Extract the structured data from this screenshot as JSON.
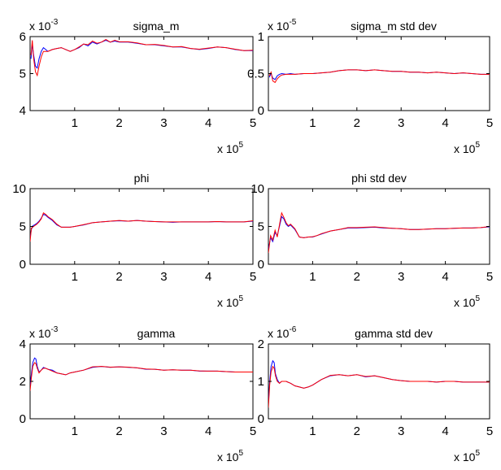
{
  "chart_data": [
    {
      "type": "line",
      "title": "sigma_m",
      "y_exponent": "-3",
      "x_exponent": "5",
      "xlim": [
        0,
        5
      ],
      "ylim": [
        4,
        6
      ],
      "x_ticks": [
        "1",
        "2",
        "3",
        "4",
        "5"
      ],
      "y_ticks": [
        "4",
        "5",
        "6"
      ],
      "grid": false,
      "series": [
        {
          "color": "#0000ff",
          "x": [
            0.02,
            0.05,
            0.08,
            0.12,
            0.16,
            0.2,
            0.25,
            0.3,
            0.35,
            0.4,
            0.5,
            0.6,
            0.7,
            0.8,
            0.9,
            1.0,
            1.1,
            1.2,
            1.3,
            1.4,
            1.5,
            1.6,
            1.7,
            1.8,
            1.9,
            2.0,
            2.2,
            2.4,
            2.6,
            2.8,
            3.0,
            3.2,
            3.4,
            3.6,
            3.8,
            4.0,
            4.2,
            4.4,
            4.6,
            4.8,
            5.0
          ],
          "y": [
            5.4,
            5.8,
            5.5,
            5.2,
            5.15,
            5.4,
            5.6,
            5.7,
            5.65,
            5.6,
            5.65,
            5.68,
            5.7,
            5.65,
            5.6,
            5.65,
            5.7,
            5.8,
            5.75,
            5.85,
            5.8,
            5.85,
            5.9,
            5.85,
            5.88,
            5.85,
            5.85,
            5.82,
            5.78,
            5.78,
            5.75,
            5.72,
            5.72,
            5.68,
            5.65,
            5.68,
            5.72,
            5.7,
            5.65,
            5.62,
            5.62
          ]
        },
        {
          "color": "#ff0000",
          "x": [
            0.02,
            0.05,
            0.08,
            0.12,
            0.16,
            0.2,
            0.25,
            0.3,
            0.35,
            0.4,
            0.5,
            0.6,
            0.7,
            0.8,
            0.9,
            1.0,
            1.1,
            1.2,
            1.3,
            1.4,
            1.5,
            1.6,
            1.7,
            1.8,
            1.9,
            2.0,
            2.2,
            2.4,
            2.6,
            2.8,
            3.0,
            3.2,
            3.4,
            3.6,
            3.8,
            4.0,
            4.2,
            4.4,
            4.6,
            4.8,
            5.0
          ],
          "y": [
            5.5,
            5.9,
            5.4,
            5.05,
            4.95,
            5.2,
            5.45,
            5.6,
            5.6,
            5.6,
            5.65,
            5.68,
            5.7,
            5.65,
            5.6,
            5.65,
            5.72,
            5.8,
            5.78,
            5.88,
            5.82,
            5.85,
            5.92,
            5.85,
            5.9,
            5.86,
            5.86,
            5.83,
            5.78,
            5.79,
            5.76,
            5.72,
            5.73,
            5.68,
            5.66,
            5.69,
            5.72,
            5.7,
            5.66,
            5.62,
            5.63
          ]
        }
      ]
    },
    {
      "type": "line",
      "title": "sigma_m std dev",
      "y_exponent": "-5",
      "x_exponent": "5",
      "xlim": [
        0,
        5
      ],
      "ylim": [
        0,
        1
      ],
      "x_ticks": [
        "1",
        "2",
        "3",
        "4",
        "5"
      ],
      "y_ticks": [
        "0",
        "0.5",
        "1"
      ],
      "grid": false,
      "series": [
        {
          "color": "#0000ff",
          "x": [
            0.02,
            0.06,
            0.1,
            0.15,
            0.2,
            0.25,
            0.3,
            0.4,
            0.5,
            0.6,
            0.8,
            1.0,
            1.2,
            1.4,
            1.6,
            1.8,
            2.0,
            2.2,
            2.4,
            2.6,
            2.8,
            3.0,
            3.2,
            3.4,
            3.6,
            3.8,
            4.0,
            4.2,
            4.4,
            4.6,
            4.8,
            5.0
          ],
          "y": [
            0.45,
            0.5,
            0.44,
            0.42,
            0.47,
            0.49,
            0.5,
            0.49,
            0.5,
            0.49,
            0.5,
            0.5,
            0.51,
            0.52,
            0.54,
            0.55,
            0.55,
            0.54,
            0.55,
            0.54,
            0.53,
            0.53,
            0.52,
            0.52,
            0.51,
            0.52,
            0.51,
            0.5,
            0.51,
            0.5,
            0.49,
            0.49
          ]
        },
        {
          "color": "#ff0000",
          "x": [
            0.02,
            0.06,
            0.1,
            0.15,
            0.2,
            0.25,
            0.3,
            0.4,
            0.5,
            0.6,
            0.8,
            1.0,
            1.2,
            1.4,
            1.6,
            1.8,
            2.0,
            2.2,
            2.4,
            2.6,
            2.8,
            3.0,
            3.2,
            3.4,
            3.6,
            3.8,
            4.0,
            4.2,
            4.4,
            4.6,
            4.8,
            5.0
          ],
          "y": [
            0.47,
            0.52,
            0.4,
            0.38,
            0.43,
            0.46,
            0.48,
            0.49,
            0.49,
            0.49,
            0.5,
            0.5,
            0.51,
            0.52,
            0.54,
            0.55,
            0.55,
            0.54,
            0.55,
            0.54,
            0.53,
            0.53,
            0.52,
            0.52,
            0.51,
            0.52,
            0.51,
            0.5,
            0.51,
            0.5,
            0.49,
            0.49
          ]
        }
      ]
    },
    {
      "type": "line",
      "title": "phi",
      "y_exponent": "",
      "x_exponent": "5",
      "xlim": [
        0,
        5
      ],
      "ylim": [
        0,
        10
      ],
      "x_ticks": [
        "1",
        "2",
        "3",
        "4",
        "5"
      ],
      "y_ticks": [
        "0",
        "5",
        "10"
      ],
      "grid": false,
      "series": [
        {
          "color": "#0000ff",
          "x": [
            0.0,
            0.03,
            0.06,
            0.1,
            0.15,
            0.2,
            0.25,
            0.3,
            0.35,
            0.4,
            0.5,
            0.6,
            0.7,
            0.8,
            0.9,
            1.0,
            1.2,
            1.4,
            1.6,
            1.8,
            2.0,
            2.2,
            2.4,
            2.6,
            2.8,
            3.0,
            3.2,
            3.4,
            3.6,
            3.8,
            4.0,
            4.2,
            4.4,
            4.6,
            4.8,
            5.0
          ],
          "y": [
            3.5,
            4.6,
            5.1,
            5.2,
            5.4,
            5.7,
            6.1,
            6.6,
            6.5,
            6.2,
            5.8,
            5.2,
            4.9,
            4.9,
            4.9,
            5.0,
            5.2,
            5.5,
            5.6,
            5.7,
            5.75,
            5.7,
            5.8,
            5.7,
            5.65,
            5.6,
            5.55,
            5.6,
            5.6,
            5.6,
            5.6,
            5.65,
            5.6,
            5.6,
            5.6,
            5.7
          ]
        },
        {
          "color": "#ff0000",
          "x": [
            0.0,
            0.03,
            0.06,
            0.1,
            0.15,
            0.2,
            0.25,
            0.3,
            0.35,
            0.4,
            0.5,
            0.6,
            0.7,
            0.8,
            0.9,
            1.0,
            1.2,
            1.4,
            1.6,
            1.8,
            2.0,
            2.2,
            2.4,
            2.6,
            2.8,
            3.0,
            3.2,
            3.4,
            3.6,
            3.8,
            4.0,
            4.2,
            4.4,
            4.6,
            4.8,
            5.0
          ],
          "y": [
            3.0,
            4.8,
            4.9,
            5.1,
            5.3,
            5.6,
            6.0,
            6.8,
            6.6,
            6.3,
            5.9,
            5.3,
            4.9,
            4.9,
            4.9,
            5.0,
            5.25,
            5.5,
            5.6,
            5.7,
            5.8,
            5.7,
            5.8,
            5.7,
            5.65,
            5.6,
            5.6,
            5.6,
            5.6,
            5.6,
            5.6,
            5.65,
            5.6,
            5.6,
            5.6,
            5.75
          ]
        }
      ]
    },
    {
      "type": "line",
      "title": "phi std dev",
      "y_exponent": "",
      "x_exponent": "5",
      "xlim": [
        0,
        5
      ],
      "ylim": [
        0,
        10
      ],
      "x_ticks": [
        "1",
        "2",
        "3",
        "4",
        "5"
      ],
      "y_ticks": [
        "0",
        "5",
        "10"
      ],
      "grid": false,
      "series": [
        {
          "color": "#0000ff",
          "x": [
            0.0,
            0.05,
            0.1,
            0.15,
            0.2,
            0.25,
            0.3,
            0.35,
            0.4,
            0.45,
            0.5,
            0.6,
            0.7,
            0.8,
            0.9,
            1.0,
            1.1,
            1.2,
            1.4,
            1.6,
            1.8,
            2.0,
            2.2,
            2.4,
            2.6,
            2.8,
            3.0,
            3.2,
            3.4,
            3.6,
            3.8,
            4.0,
            4.2,
            4.4,
            4.6,
            4.8,
            5.0
          ],
          "y": [
            2.0,
            3.5,
            3.0,
            4.2,
            3.8,
            5.0,
            6.3,
            6.0,
            5.3,
            5.0,
            5.2,
            4.6,
            3.6,
            3.5,
            3.6,
            3.6,
            3.8,
            4.0,
            4.4,
            4.6,
            4.8,
            4.8,
            4.85,
            4.9,
            4.8,
            4.75,
            4.7,
            4.6,
            4.6,
            4.65,
            4.7,
            4.7,
            4.75,
            4.8,
            4.8,
            4.85,
            4.95
          ]
        },
        {
          "color": "#ff0000",
          "x": [
            0.0,
            0.05,
            0.1,
            0.15,
            0.2,
            0.25,
            0.3,
            0.35,
            0.4,
            0.45,
            0.5,
            0.6,
            0.7,
            0.8,
            0.9,
            1.0,
            1.1,
            1.2,
            1.4,
            1.6,
            1.8,
            2.0,
            2.2,
            2.4,
            2.6,
            2.8,
            3.0,
            3.2,
            3.4,
            3.6,
            3.8,
            4.0,
            4.2,
            4.4,
            4.6,
            4.8,
            5.0
          ],
          "y": [
            1.5,
            3.8,
            3.2,
            4.5,
            3.6,
            5.2,
            6.8,
            6.2,
            5.5,
            5.1,
            5.3,
            4.7,
            3.6,
            3.5,
            3.6,
            3.65,
            3.8,
            4.05,
            4.4,
            4.6,
            4.85,
            4.85,
            4.9,
            4.95,
            4.85,
            4.75,
            4.7,
            4.6,
            4.6,
            4.65,
            4.7,
            4.7,
            4.75,
            4.8,
            4.8,
            4.85,
            5.0
          ]
        }
      ]
    },
    {
      "type": "line",
      "title": "gamma",
      "y_exponent": "-3",
      "x_exponent": "5",
      "xlim": [
        0,
        5
      ],
      "ylim": [
        0,
        4
      ],
      "x_ticks": [
        "1",
        "2",
        "3",
        "4",
        "5"
      ],
      "y_ticks": [
        "0",
        "2",
        "4"
      ],
      "grid": false,
      "series": [
        {
          "color": "#0000ff",
          "x": [
            0.0,
            0.03,
            0.06,
            0.1,
            0.13,
            0.16,
            0.2,
            0.25,
            0.3,
            0.35,
            0.4,
            0.5,
            0.6,
            0.7,
            0.8,
            0.9,
            1.0,
            1.2,
            1.4,
            1.6,
            1.8,
            2.0,
            2.2,
            2.4,
            2.6,
            2.8,
            3.0,
            3.2,
            3.4,
            3.6,
            3.8,
            4.0,
            4.2,
            4.4,
            4.6,
            4.8,
            5.0
          ],
          "y": [
            1.8,
            2.4,
            3.0,
            3.25,
            3.2,
            2.8,
            2.5,
            2.6,
            2.75,
            2.7,
            2.65,
            2.6,
            2.45,
            2.4,
            2.35,
            2.45,
            2.5,
            2.6,
            2.75,
            2.8,
            2.75,
            2.78,
            2.75,
            2.72,
            2.65,
            2.65,
            2.6,
            2.62,
            2.6,
            2.6,
            2.55,
            2.55,
            2.55,
            2.52,
            2.5,
            2.5,
            2.5
          ]
        },
        {
          "color": "#ff0000",
          "x": [
            0.0,
            0.03,
            0.06,
            0.1,
            0.13,
            0.16,
            0.2,
            0.25,
            0.3,
            0.35,
            0.4,
            0.5,
            0.6,
            0.7,
            0.8,
            0.9,
            1.0,
            1.2,
            1.4,
            1.6,
            1.8,
            2.0,
            2.2,
            2.4,
            2.6,
            2.8,
            3.0,
            3.2,
            3.4,
            3.6,
            3.8,
            4.0,
            4.2,
            4.4,
            4.6,
            4.8,
            5.0
          ],
          "y": [
            1.5,
            2.2,
            2.8,
            3.0,
            2.95,
            2.7,
            2.45,
            2.6,
            2.7,
            2.7,
            2.65,
            2.55,
            2.45,
            2.4,
            2.35,
            2.45,
            2.5,
            2.6,
            2.78,
            2.8,
            2.76,
            2.78,
            2.76,
            2.72,
            2.66,
            2.65,
            2.6,
            2.62,
            2.6,
            2.6,
            2.56,
            2.55,
            2.55,
            2.52,
            2.5,
            2.5,
            2.5
          ]
        }
      ]
    },
    {
      "type": "line",
      "title": "gamma std dev",
      "y_exponent": "-6",
      "x_exponent": "5",
      "xlim": [
        0,
        5
      ],
      "ylim": [
        0,
        2
      ],
      "x_ticks": [
        "1",
        "2",
        "3",
        "4",
        "5"
      ],
      "y_ticks": [
        "0",
        "1",
        "2"
      ],
      "grid": false,
      "series": [
        {
          "color": "#0000ff",
          "x": [
            0.0,
            0.03,
            0.06,
            0.1,
            0.13,
            0.16,
            0.2,
            0.25,
            0.3,
            0.4,
            0.5,
            0.6,
            0.7,
            0.8,
            0.9,
            1.0,
            1.2,
            1.4,
            1.6,
            1.8,
            2.0,
            2.2,
            2.4,
            2.6,
            2.8,
            3.0,
            3.2,
            3.4,
            3.6,
            3.8,
            4.0,
            4.2,
            4.4,
            4.6,
            4.8,
            5.0
          ],
          "y": [
            0.4,
            1.0,
            1.4,
            1.55,
            1.5,
            1.2,
            1.05,
            0.95,
            1.0,
            1.0,
            0.95,
            0.88,
            0.85,
            0.82,
            0.85,
            0.9,
            1.05,
            1.15,
            1.18,
            1.15,
            1.18,
            1.12,
            1.15,
            1.1,
            1.05,
            1.02,
            1.0,
            1.0,
            1.0,
            0.98,
            1.0,
            1.0,
            0.98,
            0.98,
            0.98,
            0.98
          ]
        },
        {
          "color": "#ff0000",
          "x": [
            0.0,
            0.03,
            0.06,
            0.1,
            0.13,
            0.16,
            0.2,
            0.25,
            0.3,
            0.4,
            0.5,
            0.6,
            0.7,
            0.8,
            0.9,
            1.0,
            1.2,
            1.4,
            1.6,
            1.8,
            2.0,
            2.2,
            2.4,
            2.6,
            2.8,
            3.0,
            3.2,
            3.4,
            3.6,
            3.8,
            4.0,
            4.2,
            4.4,
            4.6,
            4.8,
            5.0
          ],
          "y": [
            0.3,
            0.9,
            1.25,
            1.4,
            1.35,
            1.15,
            1.0,
            0.95,
            1.0,
            1.0,
            0.95,
            0.88,
            0.85,
            0.82,
            0.85,
            0.9,
            1.05,
            1.16,
            1.18,
            1.15,
            1.18,
            1.13,
            1.15,
            1.1,
            1.05,
            1.02,
            1.0,
            1.0,
            1.0,
            0.98,
            1.0,
            1.0,
            0.98,
            0.98,
            0.98,
            0.98
          ]
        }
      ]
    }
  ]
}
